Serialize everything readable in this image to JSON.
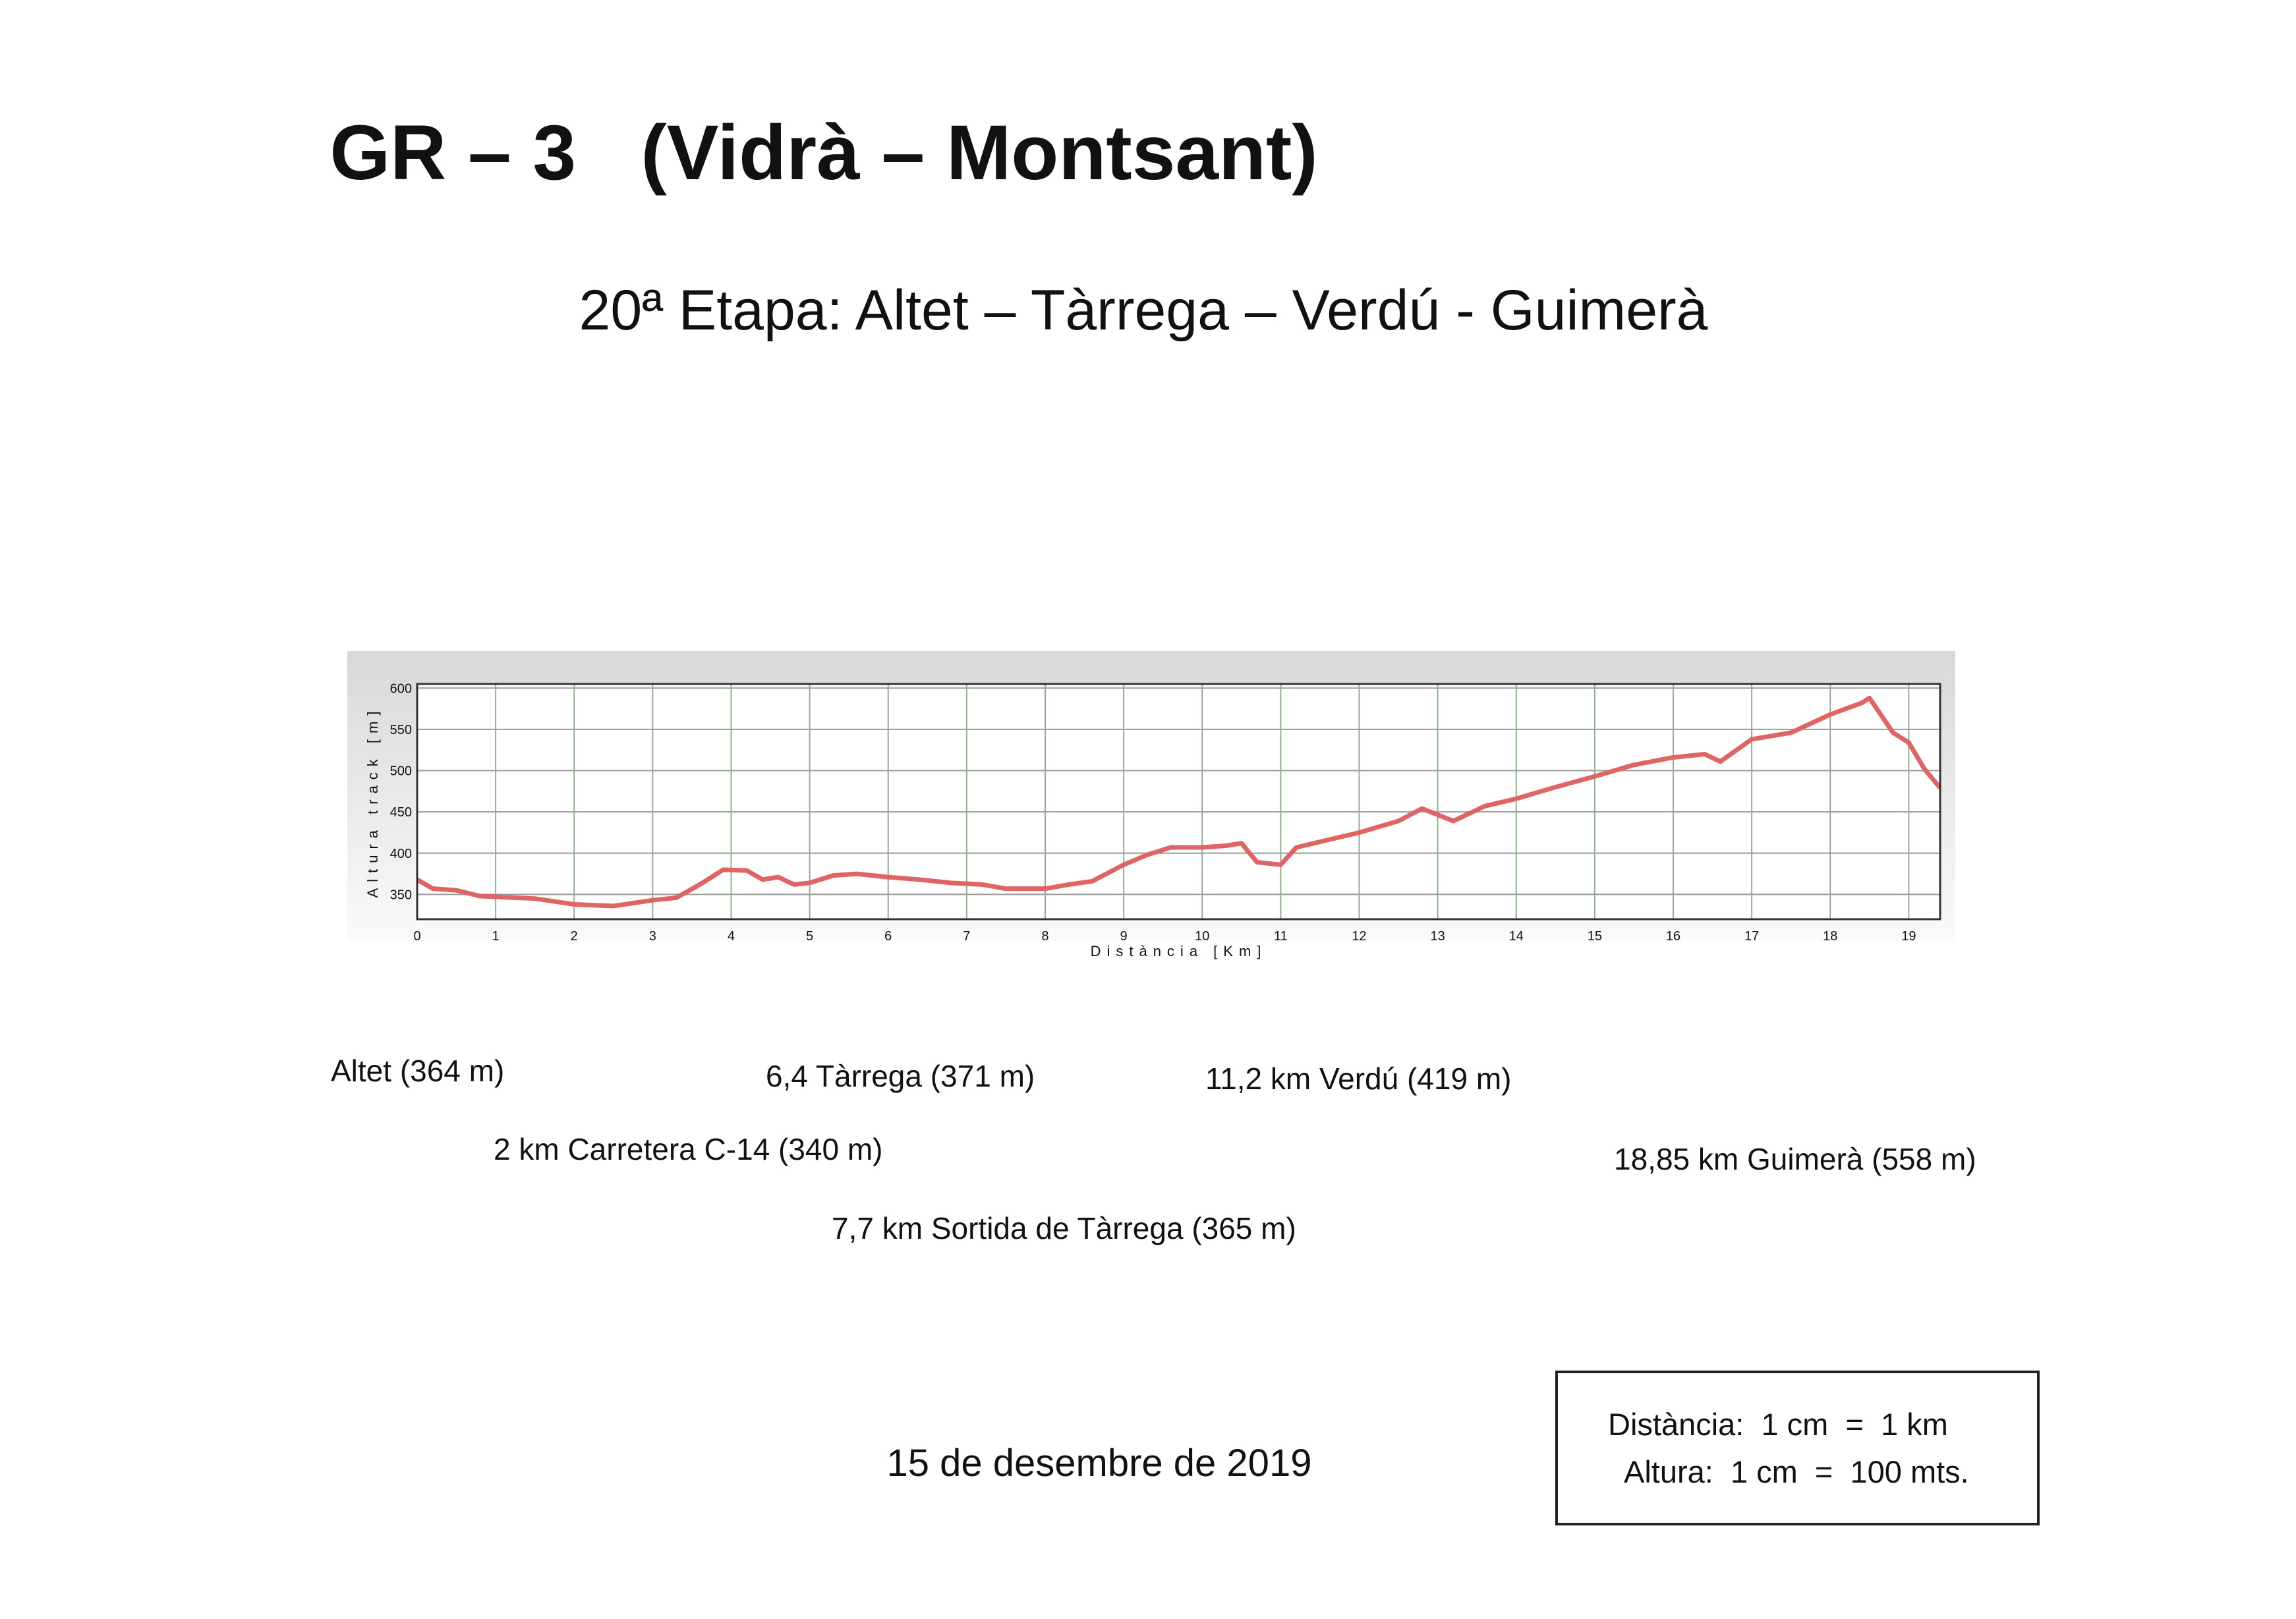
{
  "header": {
    "title": "GR – 3   (Vidrà – Montsant)",
    "subtitle": "20ª Etapa: Altet – Tàrrega – Verdú - Guimerà"
  },
  "chart_data": {
    "type": "line",
    "x_label": "Distància [Km]",
    "y_label": "Altura track [m]",
    "x": [
      0,
      0.2,
      0.5,
      0.8,
      1.5,
      2.0,
      2.5,
      3.0,
      3.3,
      3.6,
      3.9,
      4.2,
      4.4,
      4.6,
      4.8,
      5.0,
      5.3,
      5.6,
      6.0,
      6.4,
      6.8,
      7.2,
      7.5,
      8.0,
      8.3,
      8.6,
      9.0,
      9.3,
      9.6,
      10.0,
      10.3,
      10.5,
      10.7,
      11.0,
      11.2,
      11.6,
      12.0,
      12.5,
      12.8,
      13.2,
      13.6,
      14.0,
      14.5,
      15.0,
      15.5,
      16.0,
      16.4,
      16.6,
      17.0,
      17.5,
      18.0,
      18.4,
      18.5,
      18.8,
      19.0,
      19.2,
      19.4
    ],
    "series": [
      {
        "name": "Altura track",
        "color": "#e06464",
        "values": [
          368,
          357,
          355,
          348,
          345,
          338,
          336,
          343,
          346,
          362,
          380,
          379,
          368,
          371,
          362,
          364,
          373,
          375,
          371,
          368,
          364,
          362,
          357,
          357,
          362,
          366,
          386,
          398,
          407,
          407,
          409,
          412,
          389,
          386,
          407,
          416,
          425,
          439,
          454,
          439,
          457,
          466,
          480,
          493,
          507,
          516,
          520,
          511,
          538,
          546,
          568,
          582,
          588,
          546,
          534,
          502,
          479
        ]
      }
    ],
    "xlim": [
      0,
      19.4
    ],
    "ylim": [
      320,
      605
    ],
    "xticks": [
      0,
      1,
      2,
      3,
      4,
      5,
      6,
      7,
      8,
      9,
      10,
      11,
      12,
      13,
      14,
      15,
      16,
      17,
      18,
      19
    ],
    "yticks": [
      350,
      400,
      450,
      500,
      550,
      600
    ],
    "grid": true
  },
  "waypoints": [
    "Altet (364 m)",
    "6,4 Tàrrega (371 m)",
    "11,2 km Verdú (419 m)",
    "2 km Carretera C-14 (340 m)",
    "18,85 km Guimerà (558 m)",
    "7,7 km Sortida de Tàrrega (365 m)"
  ],
  "date": "15 de desembre de 2019",
  "scale": [
    "Distància:  1 cm  =  1 km",
    "Altura:  1 cm  =  100 mts."
  ]
}
